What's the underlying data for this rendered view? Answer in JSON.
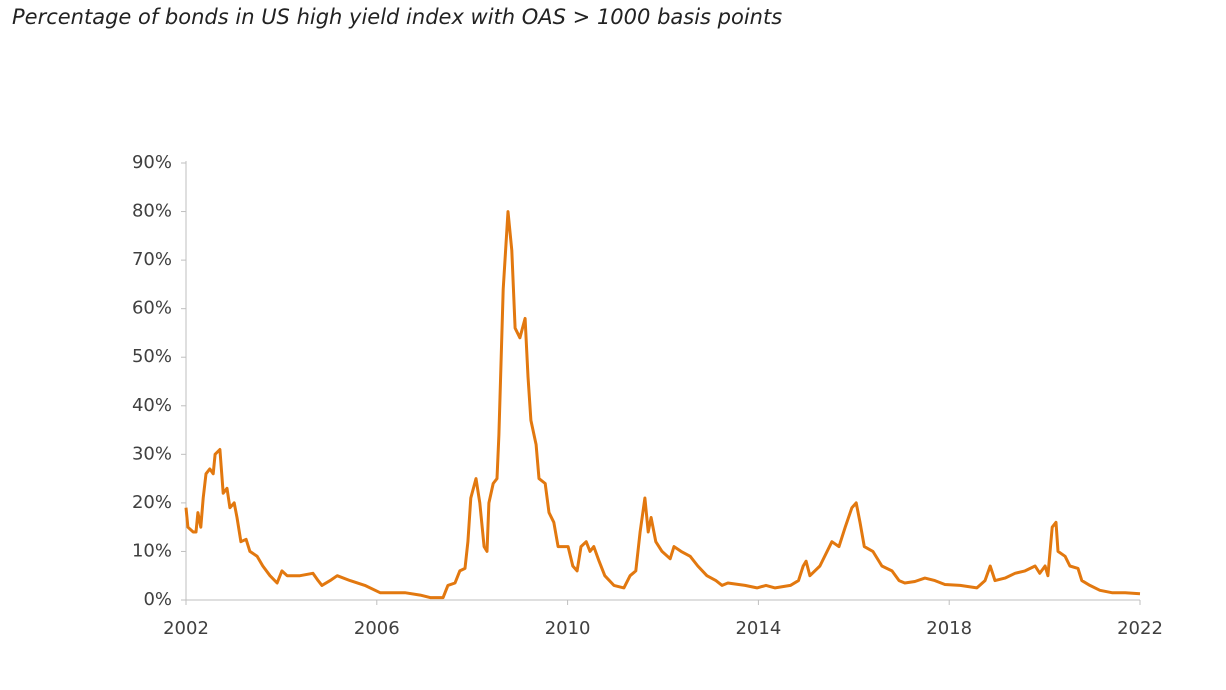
{
  "chart_data": {
    "type": "line",
    "title": "Percentage of bonds in US high yield index with OAS > 1000 basis points",
    "xlim": [
      2002,
      2022
    ],
    "xticks": [
      2002,
      2006,
      2010,
      2014,
      2018,
      2022
    ],
    "ylim": [
      0,
      90
    ],
    "yticks": [
      {
        "value": 0,
        "label": "0%"
      },
      {
        "value": 10,
        "label": "10%"
      },
      {
        "value": 20,
        "label": "20%"
      },
      {
        "value": 30,
        "label": "30%"
      },
      {
        "value": 40,
        "label": "40%"
      },
      {
        "value": 50,
        "label": "50%"
      },
      {
        "value": 60,
        "label": "60%"
      },
      {
        "value": 70,
        "label": "70%"
      },
      {
        "value": 80,
        "label": "80%"
      },
      {
        "value": 90,
        "label": "90%"
      }
    ],
    "color": "#e2780f",
    "x": [
      2002.0,
      2002.04,
      2002.15,
      2002.21,
      2002.25,
      2002.31,
      2002.36,
      2002.42,
      2002.5,
      2002.57,
      2002.61,
      2002.71,
      2002.78,
      2002.86,
      2002.92,
      2003.01,
      2003.07,
      2003.15,
      2003.26,
      2003.34,
      2003.49,
      2003.61,
      2003.76,
      2003.91,
      2004.01,
      2004.12,
      2004.39,
      2004.66,
      2004.77,
      2004.85,
      2005.02,
      2005.17,
      2005.44,
      2005.75,
      2006.07,
      2006.59,
      2006.91,
      2007.12,
      2007.39,
      2007.49,
      2007.64,
      2007.74,
      2007.85,
      2007.91,
      2007.97,
      2008.08,
      2008.16,
      2008.25,
      2008.31,
      2008.35,
      2008.44,
      2008.52,
      2008.56,
      2008.65,
      2008.75,
      2008.83,
      2008.9,
      2009.0,
      2009.11,
      2009.17,
      2009.23,
      2009.34,
      2009.4,
      2009.53,
      2009.61,
      2009.71,
      2009.8,
      2010.01,
      2010.11,
      2010.2,
      2010.28,
      2010.39,
      2010.47,
      2010.55,
      2010.66,
      2010.78,
      2010.97,
      2011.18,
      2011.31,
      2011.43,
      2011.52,
      2011.62,
      2011.69,
      2011.75,
      2011.85,
      2011.98,
      2012.15,
      2012.23,
      2012.38,
      2012.57,
      2012.73,
      2012.92,
      2013.11,
      2013.24,
      2013.36,
      2013.72,
      2013.97,
      2014.16,
      2014.35,
      2014.67,
      2014.84,
      2014.94,
      2015.0,
      2015.08,
      2015.29,
      2015.54,
      2015.69,
      2015.82,
      2015.96,
      2016.05,
      2016.13,
      2016.22,
      2016.4,
      2016.59,
      2016.8,
      2016.95,
      2017.07,
      2017.28,
      2017.49,
      2017.7,
      2017.91,
      2018.23,
      2018.58,
      2018.75,
      2018.86,
      2018.96,
      2019.17,
      2019.38,
      2019.59,
      2019.8,
      2019.9,
      2020.01,
      2020.07,
      2020.16,
      2020.24,
      2020.28,
      2020.43,
      2020.53,
      2020.7,
      2020.78,
      2020.95,
      2021.16,
      2021.41,
      2021.69,
      2022.0
    ],
    "values": [
      19,
      15,
      14,
      14,
      18,
      15,
      21,
      26,
      27,
      26,
      30,
      31,
      22,
      23,
      19,
      20,
      17,
      12,
      12.5,
      10,
      9,
      7,
      5,
      3.5,
      6,
      5,
      5,
      5.5,
      4,
      3,
      4,
      5,
      4,
      3,
      1.5,
      1.5,
      1,
      0.5,
      0.5,
      3,
      3.5,
      6,
      6.5,
      12,
      21,
      25,
      20,
      11,
      10,
      20,
      24,
      25,
      34,
      64,
      80,
      72,
      56,
      54,
      58,
      46,
      37,
      32,
      25,
      24,
      18,
      16,
      11,
      11,
      7,
      6,
      11,
      12,
      10,
      11,
      8,
      5,
      3,
      2.5,
      5,
      6,
      14,
      21,
      14,
      17,
      12,
      10,
      8.5,
      11,
      10,
      9,
      7,
      5,
      4,
      3,
      3.5,
      3,
      2.5,
      3,
      2.5,
      3,
      4,
      7,
      8,
      5,
      7,
      12,
      11,
      15,
      19,
      20,
      16,
      11,
      10,
      7,
      6,
      4,
      3.5,
      3.8,
      4.5,
      4,
      3.2,
      3,
      2.5,
      4,
      7,
      4,
      4.5,
      5.5,
      6,
      7,
      5.5,
      7,
      5,
      15,
      16,
      10,
      9,
      7,
      6.5,
      4,
      3,
      2,
      1.5,
      1.5,
      1.3
    ]
  }
}
